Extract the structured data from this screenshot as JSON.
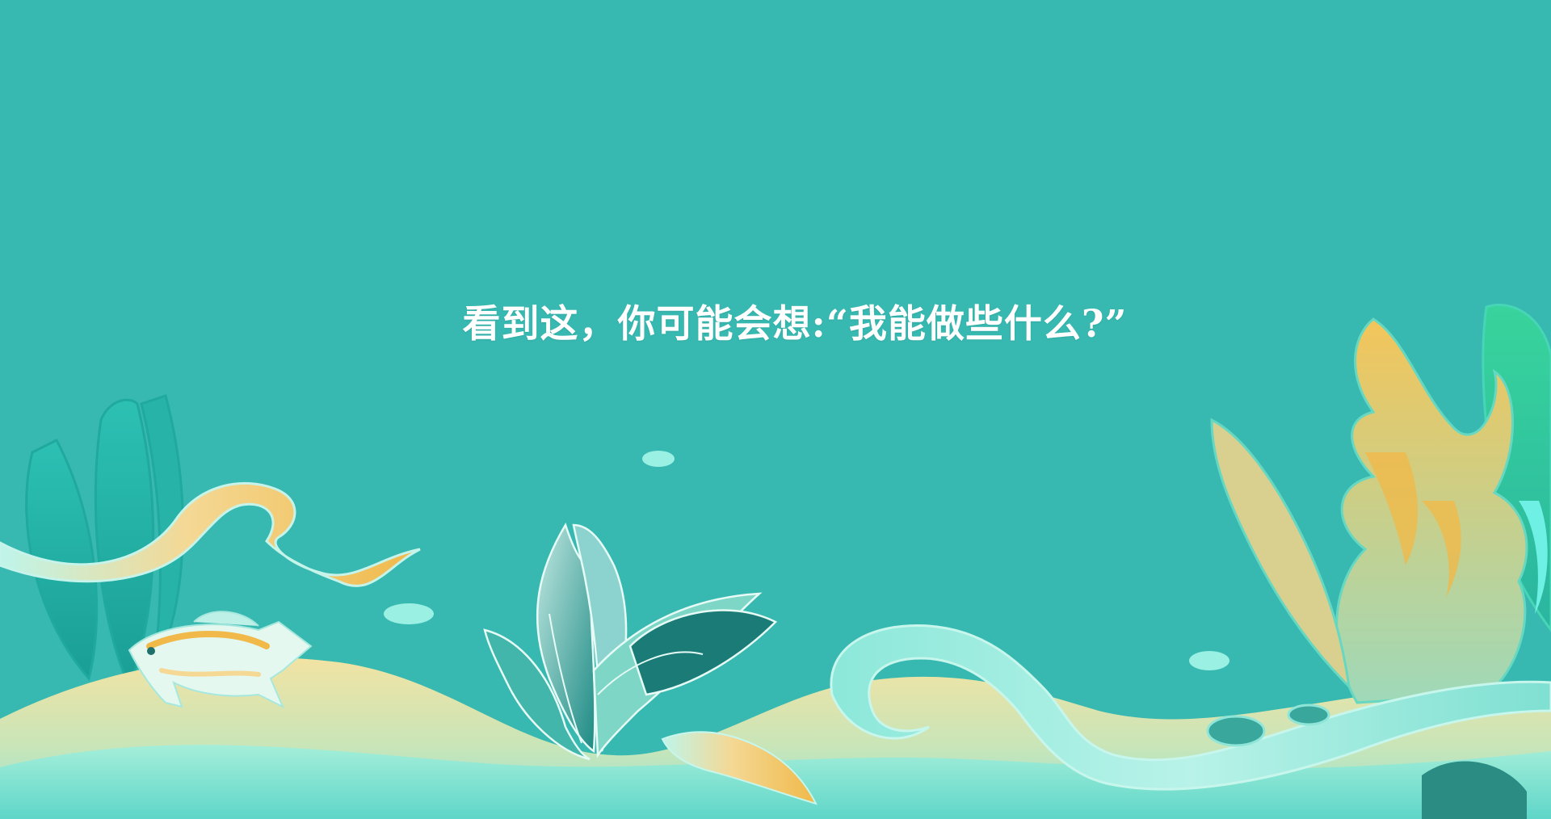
{
  "slide": {
    "headline": "看到这，你可能会想:“我能做些什么?”"
  },
  "theme": {
    "background": "#37b9b1",
    "sand": "#f2e2a2",
    "sea_foam": "#8fe6d8",
    "gold": "#f0b94a",
    "kelp": "#1fa89e"
  },
  "illustration": {
    "elements": [
      "kelp-left",
      "ribbon-left",
      "fish",
      "sea-bubbles",
      "sea-plant-center",
      "ribbon-right",
      "coral-right",
      "sand-dunes"
    ]
  }
}
